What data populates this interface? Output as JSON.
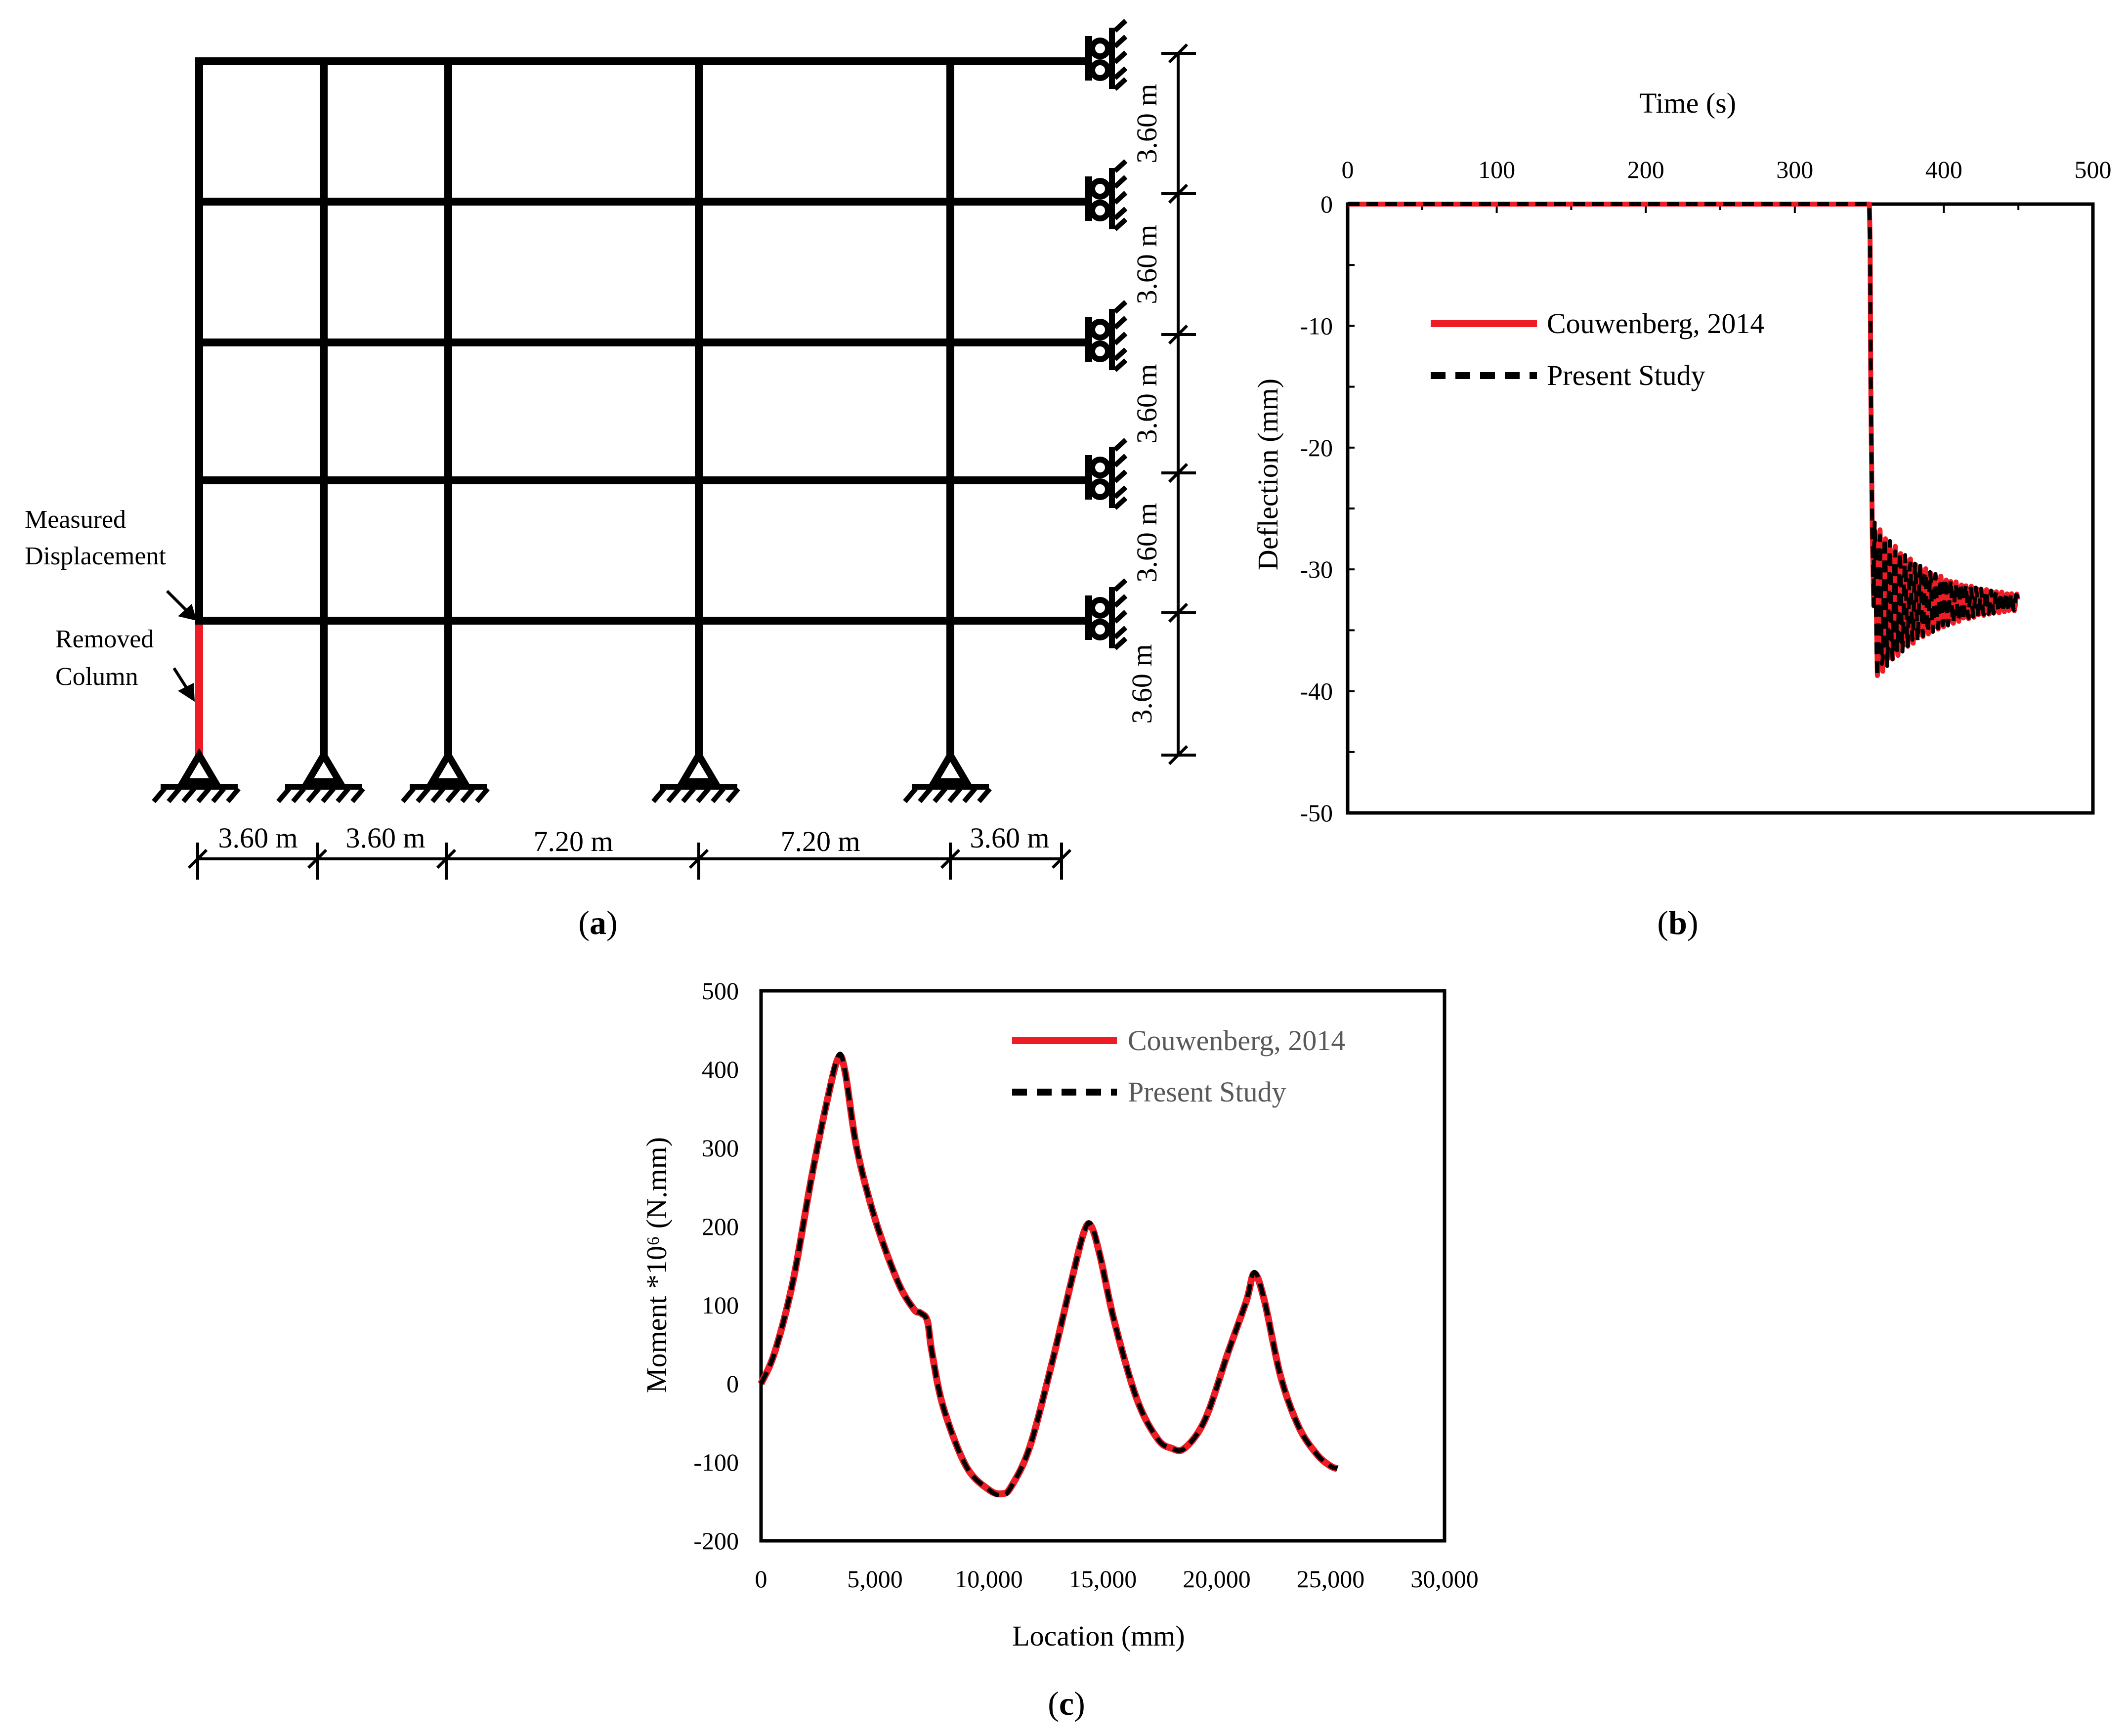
{
  "panels": {
    "a": {
      "caption_letter": "a",
      "annotations": {
        "measured_line1": "Measured",
        "measured_line2": "Displacement",
        "removed_line1": "Removed",
        "removed_line2": "Column"
      },
      "bay_widths": [
        "3.60 m",
        "3.60 m",
        "7.20 m",
        "7.20 m",
        "3.60 m"
      ],
      "storey_heights": [
        "3.60 m",
        "3.60 m",
        "3.60 m",
        "3.60 m",
        "3.60 m"
      ],
      "colors": {
        "frame": "#000000",
        "removed_column": "#ee1c25"
      }
    },
    "b": {
      "caption_letter": "b"
    },
    "c": {
      "caption_letter": "c"
    }
  },
  "chart_data": [
    {
      "id": "b",
      "type": "line",
      "title": "",
      "xlabel": "Time (s)",
      "ylabel": "Deflection (mm)",
      "xlim": [
        0,
        500
      ],
      "ylim": [
        -50,
        0
      ],
      "x_axis_position": "top",
      "xticks": [
        "0",
        "100",
        "200",
        "300",
        "400",
        "500"
      ],
      "yticks": [
        "0",
        "-10",
        "-20",
        "-30",
        "-40",
        "-50"
      ],
      "legend_position": "upper-left",
      "series": [
        {
          "name": "Couwenberg, 2014",
          "color": "#ee1c25",
          "style": "solid",
          "note": "dynamic response after column removal at t = 350 s",
          "x": [
            0,
            100,
            200,
            300,
            350,
            350.5,
            351,
            352,
            353,
            355,
            358,
            362,
            368,
            375,
            385,
            395,
            405,
            415,
            425,
            435,
            445,
            450
          ],
          "y": [
            0,
            0,
            0,
            0,
            0,
            -3,
            -15,
            -27,
            -33,
            -39,
            -29,
            -37,
            -30,
            -36,
            -31,
            -35,
            -31.5,
            -34,
            -32,
            -33.5,
            -32.5,
            -32.7
          ]
        },
        {
          "name": "Present Study",
          "color": "#000000",
          "style": "dashed",
          "x": [
            0,
            100,
            200,
            300,
            350,
            350.5,
            351,
            352,
            353,
            355,
            358,
            362,
            368,
            375,
            385,
            395,
            405,
            415,
            425,
            435,
            445,
            450
          ],
          "y": [
            0,
            0,
            0,
            0,
            0,
            -3,
            -15,
            -27,
            -33,
            -39.5,
            -28.5,
            -37,
            -30,
            -36,
            -31,
            -35,
            -31.5,
            -34,
            -32,
            -33.5,
            -32.5,
            -32.7
          ]
        }
      ]
    },
    {
      "id": "c",
      "type": "line",
      "title": "",
      "xlabel": "Location (mm)",
      "ylabel": "Moment *10⁶ (N.mm)",
      "xlim": [
        0,
        30000
      ],
      "ylim": [
        -200,
        500
      ],
      "xticks": [
        "0",
        "5,000",
        "10,000",
        "15,000",
        "20,000",
        "25,000",
        "30,000"
      ],
      "yticks": [
        "500",
        "400",
        "300",
        "200",
        "100",
        "0",
        "-100",
        "-200"
      ],
      "legend_position": "upper-right",
      "series": [
        {
          "name": "Couwenberg, 2014",
          "color": "#ee1c25",
          "style": "solid",
          "x": [
            0,
            600,
            1400,
            2200,
            2900,
            3400,
            3700,
            4200,
            5000,
            6000,
            6700,
            7000,
            7300,
            7500,
            8000,
            9000,
            10000,
            10600,
            11000,
            11800,
            12800,
            13700,
            14200,
            14500,
            14900,
            15500,
            16500,
            17400,
            18000,
            18600,
            19500,
            20500,
            21300,
            21650,
            22100,
            22800,
            23600,
            24400,
            25000,
            25300
          ],
          "y": [
            0,
            40,
            130,
            260,
            360,
            415,
            395,
            300,
            210,
            130,
            95,
            90,
            80,
            40,
            -30,
            -105,
            -135,
            -140,
            -130,
            -80,
            30,
            140,
            195,
            200,
            160,
            80,
            -20,
            -70,
            -82,
            -82,
            -45,
            40,
            105,
            140,
            105,
            10,
            -55,
            -90,
            -105,
            -108
          ]
        },
        {
          "name": "Present Study",
          "color": "#000000",
          "style": "dashed",
          "x": [
            0,
            600,
            1400,
            2200,
            2900,
            3400,
            3700,
            4200,
            5000,
            6000,
            6700,
            7000,
            7300,
            7500,
            8000,
            9000,
            10000,
            10600,
            11000,
            11800,
            12800,
            13700,
            14200,
            14500,
            14900,
            15500,
            16500,
            17400,
            18000,
            18600,
            19500,
            20500,
            21300,
            21650,
            22100,
            22800,
            23600,
            24400,
            25000,
            25300
          ],
          "y": [
            0,
            40,
            130,
            260,
            360,
            418,
            395,
            300,
            210,
            130,
            95,
            90,
            80,
            40,
            -30,
            -105,
            -135,
            -142,
            -130,
            -80,
            30,
            140,
            195,
            202,
            160,
            80,
            -20,
            -70,
            -82,
            -82,
            -45,
            40,
            105,
            142,
            105,
            10,
            -55,
            -90,
            -105,
            -108
          ]
        }
      ]
    }
  ]
}
